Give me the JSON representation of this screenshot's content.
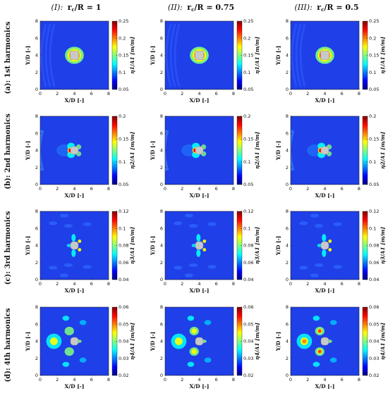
{
  "column_headers": [
    {
      "roman": "(I):",
      "ratio": "r",
      "sub": "c",
      "tail": "/R = 1"
    },
    {
      "roman": "(II):",
      "ratio": "r",
      "sub": "c",
      "tail": "/R = 0.75"
    },
    {
      "roman": "(III):",
      "ratio": "r",
      "sub": "c",
      "tail": "/R = 0.5"
    }
  ],
  "row_labels": [
    "(a): 1st harmonics",
    "(b): 2nd harmonics",
    "(c): 3rd harmonics",
    "(d): 4th harmonics"
  ],
  "axes": {
    "xlabel": "X/D [-]",
    "ylabel": "Y/D [-]",
    "xticks": [
      "0",
      "2",
      "4",
      "6",
      "8"
    ],
    "yticks": [
      "0",
      "2",
      "4",
      "6",
      "8"
    ]
  },
  "colormap": [
    "#00007f",
    "#0000ff",
    "#007fff",
    "#00ffff",
    "#7fff7f",
    "#ffff00",
    "#ff7f00",
    "#ff0000",
    "#7f0000"
  ],
  "chart_data": [
    {
      "type": "heatmap",
      "row": "a",
      "col": "I",
      "colorbar_label": "η1/A1 [m/m]",
      "clim": [
        0.05,
        0.25
      ],
      "colorbar_ticks": [
        "0.25",
        "0.2",
        "0.15",
        "0.1",
        "0.05"
      ],
      "xlim": [
        0,
        8
      ],
      "ylim": [
        0,
        8
      ]
    },
    {
      "type": "heatmap",
      "row": "a",
      "col": "II",
      "colorbar_label": "η1/A1 [m/m]",
      "clim": [
        0.05,
        0.25
      ],
      "colorbar_ticks": [
        "0.25",
        "0.2",
        "0.15",
        "0.1",
        "0.05"
      ],
      "xlim": [
        0,
        8
      ],
      "ylim": [
        0,
        8
      ]
    },
    {
      "type": "heatmap",
      "row": "a",
      "col": "III",
      "colorbar_label": "η1/A1 [m/m]",
      "clim": [
        0.05,
        0.25
      ],
      "colorbar_ticks": [
        "0.25",
        "0.2",
        "0.15",
        "0.1",
        "0.05"
      ],
      "xlim": [
        0,
        8
      ],
      "ylim": [
        0,
        8
      ]
    },
    {
      "type": "heatmap",
      "row": "b",
      "col": "I",
      "colorbar_label": "η2/A1 [m/m]",
      "clim": [
        0.05,
        0.2
      ],
      "colorbar_ticks": [
        "0.2",
        "0.15",
        "0.1",
        "0.05"
      ],
      "xlim": [
        0,
        8
      ],
      "ylim": [
        0,
        8
      ]
    },
    {
      "type": "heatmap",
      "row": "b",
      "col": "II",
      "colorbar_label": "η2/A1 [m/m]",
      "clim": [
        0.05,
        0.2
      ],
      "colorbar_ticks": [
        "0.2",
        "0.15",
        "0.1",
        "0.05"
      ],
      "xlim": [
        0,
        8
      ],
      "ylim": [
        0,
        8
      ]
    },
    {
      "type": "heatmap",
      "row": "b",
      "col": "III",
      "colorbar_label": "η2/A1 [m/m]",
      "clim": [
        0.05,
        0.2
      ],
      "colorbar_ticks": [
        "0.2",
        "0.15",
        "0.1",
        "0.05"
      ],
      "xlim": [
        0,
        8
      ],
      "ylim": [
        0,
        8
      ]
    },
    {
      "type": "heatmap",
      "row": "c",
      "col": "I",
      "colorbar_label": "η3/A1 [m/m]",
      "clim": [
        0.04,
        0.12
      ],
      "colorbar_ticks": [
        "0.12",
        "0.1",
        "0.08",
        "0.06",
        "0.04"
      ],
      "xlim": [
        0,
        8
      ],
      "ylim": [
        0,
        8
      ]
    },
    {
      "type": "heatmap",
      "row": "c",
      "col": "II",
      "colorbar_label": "η3/A1 [m/m]",
      "clim": [
        0.04,
        0.12
      ],
      "colorbar_ticks": [
        "0.12",
        "0.1",
        "0.08",
        "0.06",
        "0.04"
      ],
      "xlim": [
        0,
        8
      ],
      "ylim": [
        0,
        8
      ]
    },
    {
      "type": "heatmap",
      "row": "c",
      "col": "III",
      "colorbar_label": "η3/A1 [m/m]",
      "clim": [
        0.04,
        0.12
      ],
      "colorbar_ticks": [
        "0.12",
        "0.1",
        "0.08",
        "0.06",
        "0.04"
      ],
      "xlim": [
        0,
        8
      ],
      "ylim": [
        0,
        8
      ]
    },
    {
      "type": "heatmap",
      "row": "d",
      "col": "I",
      "colorbar_label": "η4/A1 [m/m]",
      "clim": [
        0.02,
        0.06
      ],
      "colorbar_ticks": [
        "0.06",
        "0.05",
        "0.04",
        "0.03",
        "0.02"
      ],
      "xlim": [
        0,
        8
      ],
      "ylim": [
        0,
        8
      ]
    },
    {
      "type": "heatmap",
      "row": "d",
      "col": "II",
      "colorbar_label": "η4/A1 [m/m]",
      "clim": [
        0.02,
        0.06
      ],
      "colorbar_ticks": [
        "0.06",
        "0.05",
        "0.04",
        "0.03",
        "0.02"
      ],
      "xlim": [
        0,
        8
      ],
      "ylim": [
        0,
        8
      ]
    },
    {
      "type": "heatmap",
      "row": "d",
      "col": "III",
      "colorbar_label": "η4/A1 [m/m]",
      "clim": [
        0.02,
        0.06
      ],
      "colorbar_ticks": [
        "0.06",
        "0.05",
        "0.04",
        "0.03",
        "0.02"
      ],
      "xlim": [
        0,
        8
      ],
      "ylim": [
        0,
        8
      ]
    }
  ]
}
